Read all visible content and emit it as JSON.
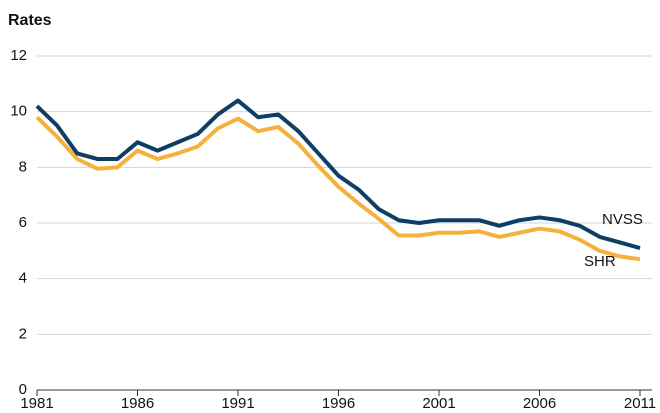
{
  "chart_data": {
    "type": "line",
    "y_label": "Rates",
    "x": [
      1981,
      1982,
      1983,
      1984,
      1985,
      1986,
      1987,
      1988,
      1989,
      1990,
      1991,
      1992,
      1993,
      1994,
      1995,
      1996,
      1997,
      1998,
      1999,
      2000,
      2001,
      2002,
      2003,
      2004,
      2005,
      2006,
      2007,
      2008,
      2009,
      2010,
      2011
    ],
    "series": [
      {
        "name": "NVSS",
        "color": "#0e3d66",
        "values": [
          10.2,
          9.5,
          8.5,
          8.3,
          8.3,
          8.9,
          8.6,
          8.9,
          9.2,
          9.9,
          10.4,
          9.8,
          9.9,
          9.3,
          8.5,
          7.7,
          7.2,
          6.5,
          6.1,
          6.0,
          6.1,
          6.1,
          6.1,
          5.9,
          6.1,
          6.2,
          6.1,
          5.9,
          5.5,
          5.3,
          5.1
        ]
      },
      {
        "name": "SHR",
        "color": "#f6b13d",
        "values": [
          9.8,
          9.1,
          8.3,
          7.95,
          8.0,
          8.6,
          8.3,
          8.5,
          8.75,
          9.4,
          9.75,
          9.3,
          9.45,
          8.85,
          8.05,
          7.3,
          6.7,
          6.15,
          5.55,
          5.55,
          5.65,
          5.65,
          5.7,
          5.5,
          5.65,
          5.8,
          5.7,
          5.4,
          5.0,
          4.8,
          4.7
        ]
      }
    ],
    "xlim": [
      1981,
      2011
    ],
    "xticks": [
      1981,
      1986,
      1991,
      1996,
      2001,
      2006,
      2011
    ],
    "ylim": [
      0,
      12
    ],
    "yticks": [
      0,
      2,
      4,
      6,
      8,
      10,
      12
    ],
    "grid": true
  }
}
